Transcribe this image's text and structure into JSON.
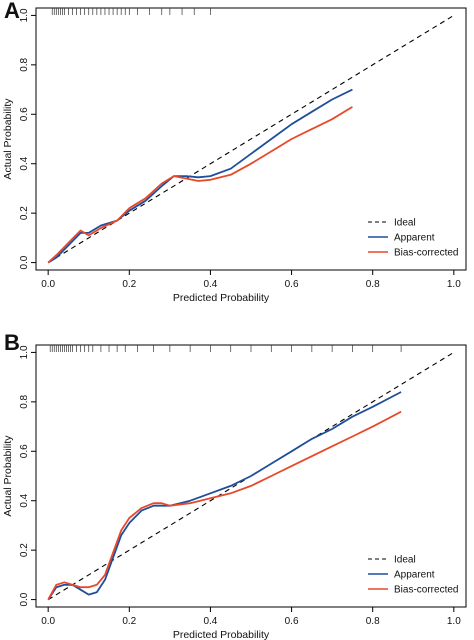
{
  "chart_data": [
    {
      "type": "line",
      "panel_label": "A",
      "xlabel": "Predicted Probability",
      "ylabel": "Actual Probability",
      "xlim": [
        -0.03,
        1.03
      ],
      "ylim": [
        -0.03,
        1.03
      ],
      "x_ticks": [
        "0.0",
        "0.2",
        "0.4",
        "0.6",
        "0.8",
        "1.0"
      ],
      "y_ticks": [
        "0.0",
        "0.2",
        "0.4",
        "0.6",
        "0.8",
        "1.0"
      ],
      "legend_position": "bottom-right",
      "rug": [
        0.01,
        0.015,
        0.02,
        0.025,
        0.03,
        0.035,
        0.04,
        0.05,
        0.06,
        0.07,
        0.08,
        0.09,
        0.1,
        0.11,
        0.12,
        0.13,
        0.14,
        0.15,
        0.16,
        0.17,
        0.18,
        0.19,
        0.2,
        0.22,
        0.25,
        0.28,
        0.3,
        0.33,
        0.36,
        0.4
      ],
      "series": [
        {
          "name": "Ideal",
          "color": "#000000",
          "dash": true,
          "x": [
            0,
            1
          ],
          "y": [
            0,
            1
          ]
        },
        {
          "name": "Apparent",
          "color": "#1f4e9c",
          "x": [
            0.0,
            0.02,
            0.05,
            0.08,
            0.1,
            0.13,
            0.17,
            0.2,
            0.24,
            0.28,
            0.31,
            0.34,
            0.37,
            0.4,
            0.45,
            0.5,
            0.55,
            0.6,
            0.65,
            0.7,
            0.75
          ],
          "y": [
            0.0,
            0.02,
            0.07,
            0.12,
            0.12,
            0.15,
            0.17,
            0.21,
            0.25,
            0.31,
            0.35,
            0.35,
            0.345,
            0.35,
            0.38,
            0.44,
            0.5,
            0.56,
            0.61,
            0.66,
            0.7
          ]
        },
        {
          "name": "Bias-corrected",
          "color": "#e8482a",
          "x": [
            0.0,
            0.02,
            0.05,
            0.08,
            0.1,
            0.13,
            0.17,
            0.2,
            0.24,
            0.28,
            0.31,
            0.34,
            0.37,
            0.4,
            0.45,
            0.5,
            0.55,
            0.6,
            0.65,
            0.7,
            0.75
          ],
          "y": [
            0.0,
            0.03,
            0.08,
            0.13,
            0.11,
            0.14,
            0.17,
            0.22,
            0.26,
            0.32,
            0.35,
            0.34,
            0.33,
            0.335,
            0.355,
            0.4,
            0.45,
            0.5,
            0.54,
            0.58,
            0.63
          ]
        }
      ]
    },
    {
      "type": "line",
      "panel_label": "B",
      "xlabel": "Predicted Probability",
      "ylabel": "Actual Probability",
      "xlim": [
        -0.03,
        1.03
      ],
      "ylim": [
        -0.03,
        1.03
      ],
      "x_ticks": [
        "0.0",
        "0.2",
        "0.4",
        "0.6",
        "0.8",
        "1.0"
      ],
      "y_ticks": [
        "0.0",
        "0.2",
        "0.4",
        "0.6",
        "0.8",
        "1.0"
      ],
      "legend_position": "bottom-right",
      "rug": [
        0.005,
        0.01,
        0.015,
        0.02,
        0.025,
        0.03,
        0.035,
        0.04,
        0.045,
        0.05,
        0.055,
        0.06,
        0.07,
        0.08,
        0.09,
        0.1,
        0.11,
        0.13,
        0.15,
        0.17,
        0.19,
        0.22,
        0.26,
        0.3,
        0.35,
        0.4,
        0.45,
        0.5,
        0.55,
        0.6,
        0.65,
        0.7,
        0.75,
        0.8,
        0.87
      ],
      "series": [
        {
          "name": "Ideal",
          "color": "#000000",
          "dash": true,
          "x": [
            0,
            1
          ],
          "y": [
            0,
            1
          ]
        },
        {
          "name": "Apparent",
          "color": "#1f4e9c",
          "x": [
            0.0,
            0.02,
            0.04,
            0.06,
            0.08,
            0.1,
            0.12,
            0.14,
            0.16,
            0.18,
            0.2,
            0.23,
            0.26,
            0.28,
            0.3,
            0.35,
            0.4,
            0.45,
            0.5,
            0.55,
            0.6,
            0.65,
            0.7,
            0.75,
            0.8,
            0.87
          ],
          "y": [
            0.0,
            0.05,
            0.06,
            0.06,
            0.04,
            0.02,
            0.03,
            0.08,
            0.17,
            0.26,
            0.31,
            0.36,
            0.38,
            0.38,
            0.38,
            0.4,
            0.43,
            0.46,
            0.5,
            0.55,
            0.6,
            0.65,
            0.69,
            0.74,
            0.78,
            0.84
          ]
        },
        {
          "name": "Bias-corrected",
          "color": "#e8482a",
          "x": [
            0.0,
            0.02,
            0.04,
            0.06,
            0.08,
            0.1,
            0.12,
            0.14,
            0.16,
            0.18,
            0.2,
            0.23,
            0.26,
            0.28,
            0.3,
            0.35,
            0.4,
            0.45,
            0.5,
            0.55,
            0.6,
            0.65,
            0.7,
            0.75,
            0.8,
            0.87
          ],
          "y": [
            0.0,
            0.06,
            0.07,
            0.06,
            0.05,
            0.05,
            0.06,
            0.1,
            0.19,
            0.28,
            0.33,
            0.37,
            0.39,
            0.39,
            0.38,
            0.39,
            0.41,
            0.43,
            0.46,
            0.5,
            0.54,
            0.58,
            0.62,
            0.66,
            0.7,
            0.76
          ]
        }
      ]
    }
  ]
}
